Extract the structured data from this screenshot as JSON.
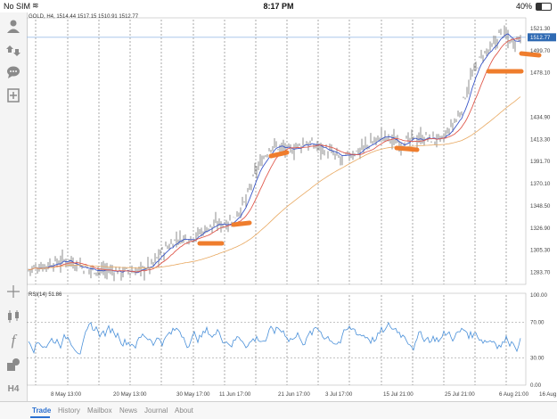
{
  "status": {
    "carrier": "No SIM",
    "time": "8:17 PM",
    "battery": "40%"
  },
  "chart": {
    "title": "GOLD, H4, 1514.44 1517.15 1510.91 1512.77",
    "price_labels": [
      "1521.30",
      "1499.70",
      "1478.10",
      "1434.90",
      "1413.30",
      "1391.70",
      "1370.10",
      "1348.50",
      "1326.90",
      "1305.30",
      "1283.70"
    ],
    "current_price": "1512.77",
    "date_labels": [
      "8 May 13:00",
      "20 May 13:00",
      "30 May 17:00",
      "11 Jun 17:00",
      "21 Jun 17:00",
      "3 Jul 17:00",
      "15 Jul 21:00",
      "25 Jul 21:00",
      "6 Aug 21:00",
      "16 Aug 21:00"
    ],
    "rsi_title": "RSI(14) 51.86",
    "rsi_levels": [
      "100.00",
      "70.00",
      "30.00",
      "0.00"
    ]
  },
  "tabs": [
    {
      "label": "Trade",
      "active": true
    },
    {
      "label": "History",
      "active": false
    },
    {
      "label": "Mailbox",
      "active": false
    },
    {
      "label": "News",
      "active": false
    },
    {
      "label": "Journal",
      "active": false
    },
    {
      "label": "About",
      "active": false
    }
  ],
  "sidebar": {
    "timeframe": "H4"
  },
  "colors": {
    "candles": "#8c8c8c",
    "ma_red": "#e05a4e",
    "ma_blue": "#3a56c8",
    "ma_orange": "#e8a860",
    "rsi": "#4a90d9",
    "annotation": "#ef7d2d",
    "price_line": "#9fbfe8",
    "active_tab": "#2a6fd0"
  }
}
